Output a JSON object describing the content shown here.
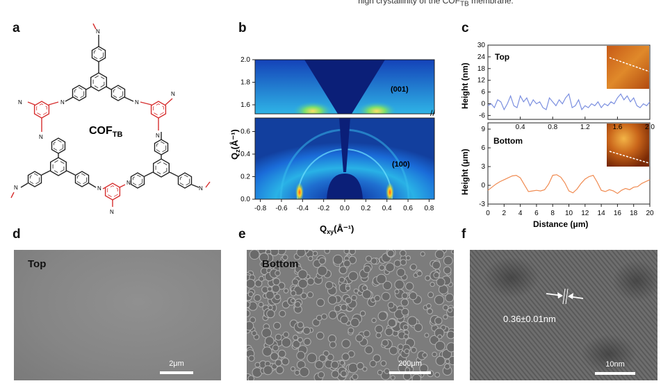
{
  "caption_fragment": "high crystallinity of the COF",
  "caption_fragment_sub": "TB",
  "caption_fragment_tail": " membrane.",
  "panels": {
    "a": {
      "letter": "a",
      "compound_main": "COF",
      "compound_sub": "TB",
      "imine_label": "N"
    },
    "b": {
      "letter": "b",
      "ylabel_main": "Q",
      "ylabel_sub": "z",
      "ylabel_unit": "(Å⁻¹)",
      "xlabel_main": "Q",
      "xlabel_sub": "xy",
      "xlabel_unit": "(Å⁻¹)",
      "peak_upper": "(001)",
      "peak_lower": "(100)"
    },
    "c": {
      "letter": "c",
      "top_label": "Top",
      "bottom_label": "Bottom",
      "top_ylabel": "Height (nm)",
      "bottom_ylabel": "Height (μm)",
      "xlabel": "Distance (μm)"
    },
    "d": {
      "letter": "d",
      "label": "Top",
      "scale": "2μm"
    },
    "e": {
      "letter": "e",
      "label": "Bottom",
      "scale": "200μm"
    },
    "f": {
      "letter": "f",
      "measurement": "0.36±0.01nm",
      "scale": "10nm"
    }
  },
  "chart_data": [
    {
      "type": "heatmap",
      "title": "",
      "xlabel": "Qxy (Å⁻¹)",
      "ylabel": "Qz (Å⁻¹)",
      "x_ticks": [
        "-0.8",
        "-0.6",
        "-0.4",
        "-0.2",
        "0.0",
        "0.2",
        "0.4",
        "0.6",
        "0.8"
      ],
      "y_ticks_lower": [
        "0.0",
        "0.2",
        "0.4",
        "0.6"
      ],
      "y_ticks_upper": [
        "1.6",
        "1.8",
        "2.0"
      ],
      "xlim": [
        -0.85,
        0.85
      ],
      "ylim_lower": [
        0.0,
        0.72
      ],
      "ylim_upper": [
        1.52,
        2.0
      ],
      "annotations": [
        "(001)",
        "(100)"
      ]
    },
    {
      "type": "line",
      "title": "",
      "label": "Top",
      "xlabel": "",
      "ylabel": "Height (nm)",
      "x_ticks": [
        "0.4",
        "0.8",
        "1.2",
        "1.6",
        "2.0"
      ],
      "y_ticks": [
        "30",
        "24",
        "18",
        "12",
        "6",
        "0",
        "-6"
      ],
      "xlim": [
        0.0,
        2.0
      ],
      "ylim": [
        -8,
        30
      ],
      "color": "#7b8fe0",
      "x": [
        0.0,
        0.04,
        0.08,
        0.12,
        0.16,
        0.2,
        0.24,
        0.28,
        0.32,
        0.36,
        0.4,
        0.44,
        0.48,
        0.52,
        0.56,
        0.6,
        0.64,
        0.68,
        0.72,
        0.76,
        0.8,
        0.84,
        0.88,
        0.92,
        0.96,
        1.0,
        1.04,
        1.08,
        1.12,
        1.16,
        1.2,
        1.24,
        1.28,
        1.32,
        1.36,
        1.4,
        1.44,
        1.48,
        1.52,
        1.56,
        1.6,
        1.64,
        1.68,
        1.72,
        1.76,
        1.8,
        1.84,
        1.88,
        1.92,
        1.96,
        2.0
      ],
      "y": [
        -1,
        0,
        -2,
        2,
        1,
        -3,
        0,
        4,
        -1,
        -2,
        4,
        1,
        3,
        -1,
        2,
        0,
        1,
        -2,
        -3,
        3,
        1,
        -1,
        2,
        0,
        3,
        5,
        -2,
        -1,
        2,
        -3,
        -1,
        -2,
        0,
        -1,
        1,
        -2,
        0,
        -1,
        1,
        0,
        3,
        5,
        2,
        4,
        1,
        3,
        -1,
        -2,
        0,
        -1,
        1
      ]
    },
    {
      "type": "line",
      "title": "",
      "label": "Bottom",
      "xlabel": "Distance (μm)",
      "ylabel": "Height (μm)",
      "x_ticks": [
        "0",
        "2",
        "4",
        "6",
        "8",
        "10",
        "12",
        "14",
        "16",
        "18",
        "20"
      ],
      "y_ticks": [
        "9",
        "6",
        "3",
        "0",
        "-3"
      ],
      "xlim": [
        0,
        20
      ],
      "ylim": [
        -3,
        10
      ],
      "color": "#f08a50",
      "x": [
        0,
        0.5,
        1,
        1.5,
        2,
        2.5,
        3,
        3.5,
        4,
        4.5,
        5,
        5.5,
        6,
        6.5,
        7,
        7.5,
        8,
        8.5,
        9,
        9.5,
        10,
        10.5,
        11,
        11.5,
        12,
        12.5,
        13,
        13.5,
        14,
        14.5,
        15,
        15.5,
        16,
        16.5,
        17,
        17.5,
        18,
        18.5,
        19,
        19.5,
        20
      ],
      "y": [
        -0.8,
        -0.3,
        0.2,
        0.6,
        0.9,
        1.2,
        1.5,
        1.6,
        1.2,
        0.1,
        -1.0,
        -0.9,
        -0.8,
        -0.9,
        -0.7,
        0.2,
        1.6,
        1.7,
        1.3,
        0.4,
        -0.9,
        -1.2,
        -0.6,
        0.3,
        1.0,
        1.4,
        1.6,
        0.5,
        -0.8,
        -1.0,
        -0.7,
        -0.9,
        -1.3,
        -0.8,
        -0.5,
        -0.7,
        -0.3,
        -0.2,
        0.3,
        0.6,
        0.9
      ]
    }
  ]
}
